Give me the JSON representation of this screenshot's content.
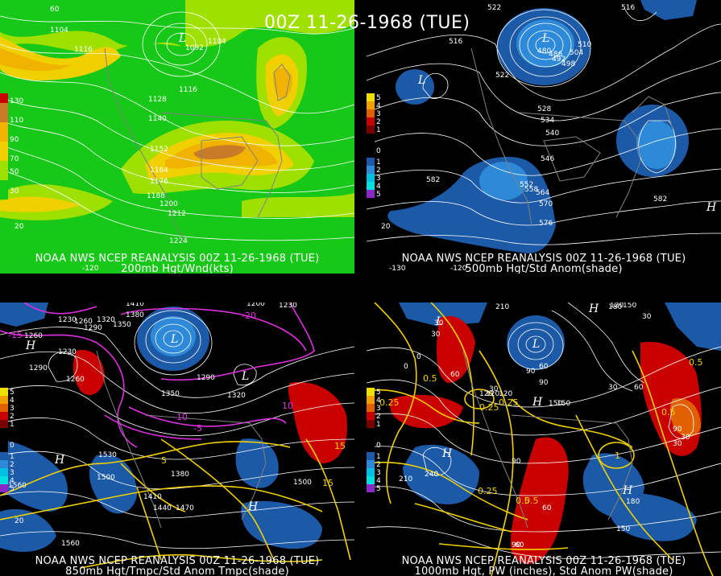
{
  "title": "00Z 11-26-1968 (TUE)",
  "panels": {
    "p1": {
      "caption_line1": "NOAA NWS NCEP REANALYSIS 00Z 11-26-1968 (TUE)",
      "caption_line2": "200mb Hgt/Wnd(kts)",
      "legend": [
        {
          "label": "130",
          "color": "#c80000"
        },
        {
          "label": "110",
          "color": "#c87c28"
        },
        {
          "label": "90",
          "color": "#f0b400"
        },
        {
          "label": "70",
          "color": "#f0d000"
        },
        {
          "label": "50",
          "color": "#a0e000"
        },
        {
          "label": "30",
          "color": "#18c818"
        }
      ],
      "contour_labels": [
        "1104",
        "1116",
        "1092",
        "1104",
        "1116",
        "1128",
        "1140",
        "1152",
        "1164",
        "1176",
        "1188",
        "1200",
        "1212",
        "1224"
      ],
      "lon_labels": [
        "-120",
        "60",
        "20"
      ],
      "low_label": "L"
    },
    "p2": {
      "caption_line1": "NOAA NWS NCEP REANALYSIS 00Z 11-26-1968 (TUE)",
      "caption_line2": "500mb Hgt/Std Anom(shade)",
      "legend": [
        {
          "label": "5",
          "color": "#f0e000"
        },
        {
          "label": "4",
          "color": "#f0a000"
        },
        {
          "label": "3",
          "color": "#e06000"
        },
        {
          "label": "2",
          "color": "#c80000"
        },
        {
          "label": "1",
          "color": "#780000"
        },
        {
          "label": "0",
          "color": "#000000"
        },
        {
          "label": "1",
          "color": "#1c5aa8"
        },
        {
          "label": "2",
          "color": "#2e8ad8"
        },
        {
          "label": "3",
          "color": "#00c0e0"
        },
        {
          "label": "4",
          "color": "#00e0e0"
        },
        {
          "label": "5",
          "color": "#8c28c8"
        }
      ],
      "contour_labels": [
        "522",
        "516",
        "516",
        "522",
        "528",
        "534",
        "540",
        "546",
        "552",
        "558",
        "564",
        "570",
        "576",
        "582",
        "582",
        "510",
        "504",
        "498",
        "492",
        "486",
        "480"
      ],
      "lon_labels": [
        "-130",
        "-120",
        "20"
      ],
      "low_label": "L",
      "high_label": "H"
    },
    "p3": {
      "caption_line1": "NOAA NWS NCEP REANALYSIS 00Z 11-26-1968 (TUE)",
      "caption_line2": "850mb Hgt/Tmpc/Std Anom Tmpc(shade)",
      "legend": [
        {
          "label": "5",
          "color": "#f0e000"
        },
        {
          "label": "4",
          "color": "#f0a000"
        },
        {
          "label": "3",
          "color": "#e06000"
        },
        {
          "label": "2",
          "color": "#c80000"
        },
        {
          "label": "1",
          "color": "#780000"
        },
        {
          "label": "0",
          "color": "#000000"
        },
        {
          "label": "1",
          "color": "#1c5aa8"
        },
        {
          "label": "2",
          "color": "#2e8ad8"
        },
        {
          "label": "3",
          "color": "#00c0e0"
        },
        {
          "label": "4",
          "color": "#00e0e0"
        },
        {
          "label": "5",
          "color": "#8c28c8"
        }
      ],
      "contour_labels": [
        "1410",
        "1380",
        "1350",
        "1320",
        "1290",
        "1260",
        "1230",
        "1200",
        "1530",
        "1500",
        "1560",
        "1440",
        "1470",
        "1410",
        "1380",
        "1350",
        "1290",
        "1320",
        "1260",
        "1230",
        "1500",
        "1560",
        "1290",
        "1260",
        "1230"
      ],
      "temp_labels": [
        "-10",
        "-5",
        "5",
        "10",
        "15",
        "15",
        "-15",
        "-20"
      ],
      "lon_labels": [
        "20"
      ],
      "low_label": "L",
      "high_label": "H"
    },
    "p4": {
      "caption_line1": "NOAA NWS NCEP REANALYSIS 00Z 11-26-1968 (TUE)",
      "caption_line2": "1000mb Hgt, PW (inches), Std Anom PW(shade)",
      "legend": [
        {
          "label": "5",
          "color": "#f0e000"
        },
        {
          "label": "4",
          "color": "#f0a000"
        },
        {
          "label": "3",
          "color": "#e06000"
        },
        {
          "label": "2",
          "color": "#c80000"
        },
        {
          "label": "1",
          "color": "#780000"
        },
        {
          "label": "0",
          "color": "#000000"
        },
        {
          "label": "1",
          "color": "#1c5aa8"
        },
        {
          "label": "2",
          "color": "#2e8ad8"
        },
        {
          "label": "3",
          "color": "#00c0e0"
        },
        {
          "label": "4",
          "color": "#00e0e0"
        },
        {
          "label": "5",
          "color": "#8c28c8"
        }
      ],
      "contour_labels": [
        "210",
        "180",
        "150",
        "120",
        "90",
        "60",
        "30",
        "0",
        "30",
        "60",
        "90",
        "120",
        "150",
        "180",
        "210",
        "240",
        "30",
        "30",
        "120",
        "150",
        "90",
        "60",
        "30",
        "0",
        "30",
        "60",
        "90",
        "150",
        "120",
        "90",
        "60",
        "30"
      ],
      "pw_labels": [
        "0.25",
        "0.25",
        "0.5",
        "0.25",
        "0.5",
        "1",
        "0.5",
        "0.5",
        "0.5",
        "0.25"
      ],
      "low_label": "L",
      "high_label": "H"
    }
  }
}
